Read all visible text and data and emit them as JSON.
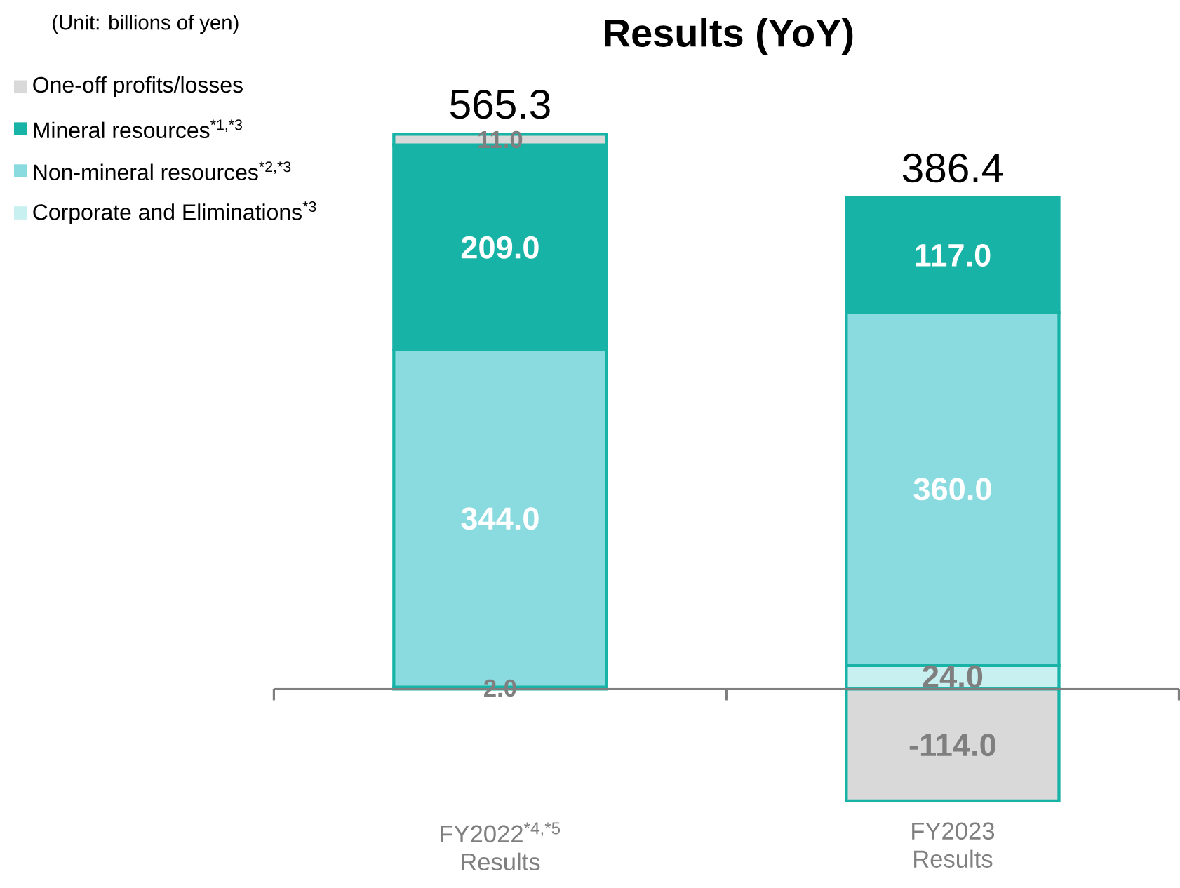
{
  "chart_data": {
    "type": "bar",
    "title": "Results (YoY)",
    "stacked": true,
    "legend": "top left",
    "annotations": [
      "(Unit: billions of yen)",
      {
        "text": "565.3",
        "x": "FY2022$^{*4,*5}$ Results",
        "y": 566
      },
      {
        "text": "386.4",
        "x": "FY2023 Results",
        "y": 501
      }
    ],
    "categories": [
      "FY2022$^{*4,*5}$ Results",
      "FY2023 Results"
    ],
    "series": [
      {
        "name": "Corporate and Eliminations$^{*3}$",
        "color": "#c9f0f0",
        "values": [
          2.0,
          24.0
        ],
        "value_labels": [
          "2.0",
          "24.0"
        ]
      },
      {
        "name": "Non-mineral resources$^{*2,*3}$",
        "color": "#8adbe0",
        "values": [
          344.0,
          360.0
        ],
        "value_labels": [
          "344.0",
          "360.0"
        ]
      },
      {
        "name": "Mineral resources$^{*1,*3}$",
        "color": "#17b3a6",
        "values": [
          209.0,
          117.0
        ],
        "value_labels": [
          "209.0",
          "117.0"
        ]
      },
      {
        "name": "One-off profits/losses",
        "color": "#d9d9d9",
        "values": [
          11.0,
          -114.0
        ],
        "value_labels": [
          "11.0",
          "-114.0"
        ]
      }
    ]
  }
}
